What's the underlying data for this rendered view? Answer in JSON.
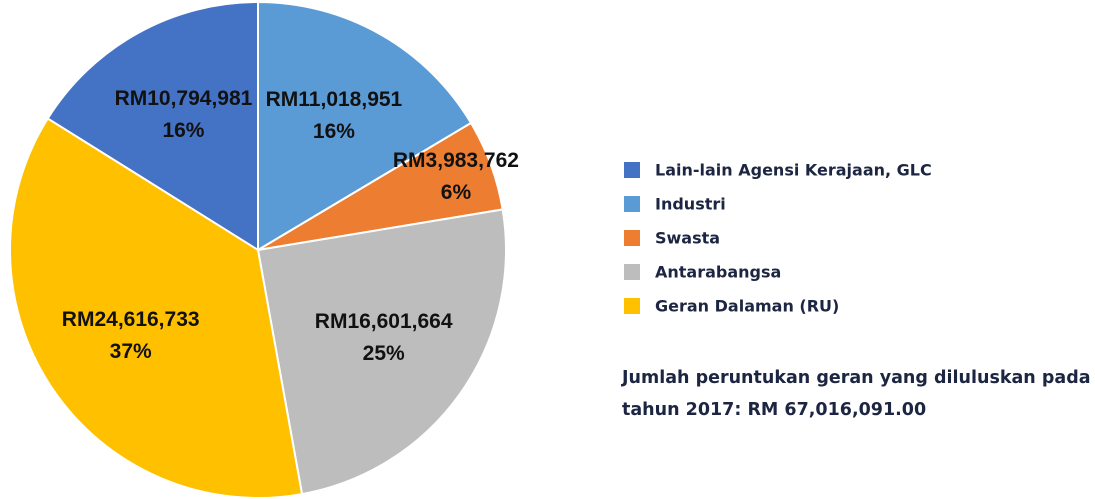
{
  "chart_data": {
    "type": "pie",
    "categories": [
      "Lain-lain Agensi Kerajaan, GLC",
      "Industri",
      "Swasta",
      "Antarabangsa",
      "Geran Dalaman (RU)"
    ],
    "values": [
      10794981,
      11018951,
      3983762,
      16601664,
      24616733
    ],
    "value_labels": [
      "RM10,794,981",
      "RM11,018,951",
      "RM3,983,762",
      "RM16,601,664",
      "RM24,616,733"
    ],
    "percent_labels": [
      "16%",
      "16%",
      "6%",
      "25%",
      "37%"
    ],
    "colors": [
      "#4472c4",
      "#5b9bd5",
      "#ed7d31",
      "#bdbdbd",
      "#ffc000"
    ],
    "legend": "right",
    "annotation": "Jumlah peruntukan geran yang diluluskan pada tahun 2017: RM 67,016,091.00"
  }
}
